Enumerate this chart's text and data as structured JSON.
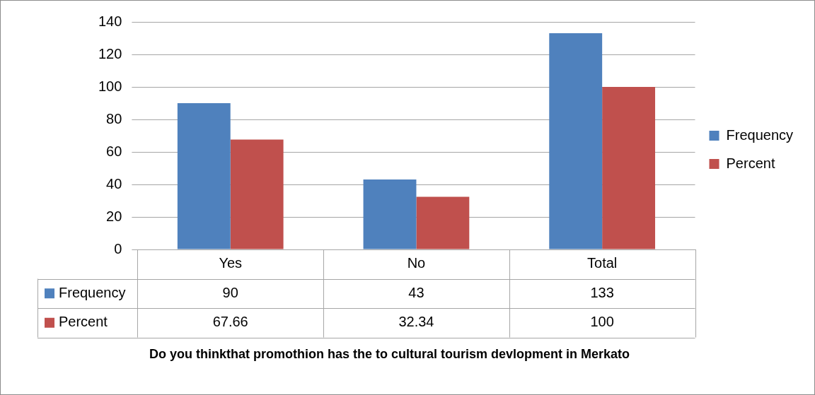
{
  "chart_data": {
    "type": "bar",
    "annotations": [
      "Do you thinkthat promothion has the to cultural tourism devlopment in Merkato"
    ],
    "categories": [
      "Yes",
      "No",
      "Total"
    ],
    "series": [
      {
        "name": "Frequency",
        "color": "#4f81bd",
        "values": [
          90,
          43,
          133
        ]
      },
      {
        "name": "Percent",
        "color": "#c0504d",
        "values": [
          67.66,
          32.34,
          100
        ]
      }
    ],
    "ylim": [
      0,
      140
    ],
    "yticks": [
      0,
      20,
      40,
      60,
      80,
      100,
      120,
      140
    ],
    "grid": "y",
    "legend": "right",
    "data_labels": true
  }
}
